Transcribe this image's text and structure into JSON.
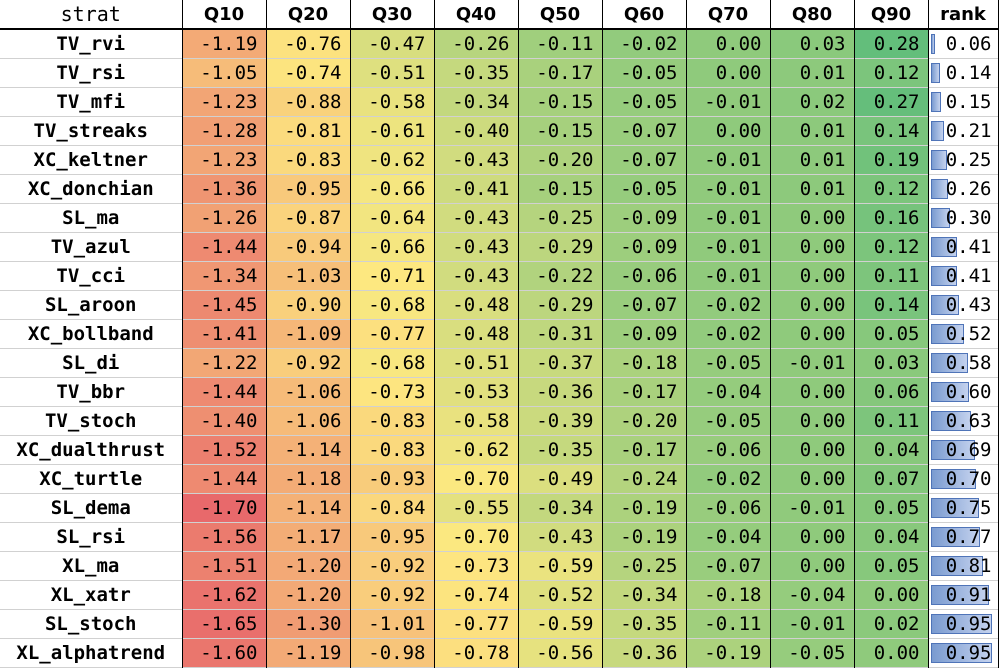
{
  "columns": [
    "strat",
    "Q10",
    "Q20",
    "Q30",
    "Q40",
    "Q50",
    "Q60",
    "Q70",
    "Q80",
    "Q90",
    "rank"
  ],
  "rows": [
    {
      "strat": "TV_rvi",
      "vals": [
        "-1.19",
        "-0.76",
        "-0.47",
        "-0.26",
        "-0.11",
        "-0.02",
        "0.00",
        "0.03",
        "0.28"
      ],
      "rank": "0.06"
    },
    {
      "strat": "TV_rsi",
      "vals": [
        "-1.05",
        "-0.74",
        "-0.51",
        "-0.35",
        "-0.17",
        "-0.05",
        "0.00",
        "0.01",
        "0.12"
      ],
      "rank": "0.14"
    },
    {
      "strat": "TV_mfi",
      "vals": [
        "-1.23",
        "-0.88",
        "-0.58",
        "-0.34",
        "-0.15",
        "-0.05",
        "-0.01",
        "0.02",
        "0.27"
      ],
      "rank": "0.15"
    },
    {
      "strat": "TV_streaks",
      "vals": [
        "-1.28",
        "-0.81",
        "-0.61",
        "-0.40",
        "-0.15",
        "-0.07",
        "0.00",
        "0.01",
        "0.14"
      ],
      "rank": "0.21"
    },
    {
      "strat": "XC_keltner",
      "vals": [
        "-1.23",
        "-0.83",
        "-0.62",
        "-0.43",
        "-0.20",
        "-0.07",
        "-0.01",
        "0.01",
        "0.19"
      ],
      "rank": "0.25"
    },
    {
      "strat": "XC_donchian",
      "vals": [
        "-1.36",
        "-0.95",
        "-0.66",
        "-0.41",
        "-0.15",
        "-0.05",
        "-0.01",
        "0.01",
        "0.12"
      ],
      "rank": "0.26"
    },
    {
      "strat": "SL_ma",
      "vals": [
        "-1.26",
        "-0.87",
        "-0.64",
        "-0.43",
        "-0.25",
        "-0.09",
        "-0.01",
        "0.00",
        "0.16"
      ],
      "rank": "0.30"
    },
    {
      "strat": "TV_azul",
      "vals": [
        "-1.44",
        "-0.94",
        "-0.66",
        "-0.43",
        "-0.29",
        "-0.09",
        "-0.01",
        "0.00",
        "0.12"
      ],
      "rank": "0.41"
    },
    {
      "strat": "TV_cci",
      "vals": [
        "-1.34",
        "-1.03",
        "-0.71",
        "-0.43",
        "-0.22",
        "-0.06",
        "-0.01",
        "0.00",
        "0.11"
      ],
      "rank": "0.41"
    },
    {
      "strat": "SL_aroon",
      "vals": [
        "-1.45",
        "-0.90",
        "-0.68",
        "-0.48",
        "-0.29",
        "-0.07",
        "-0.02",
        "0.00",
        "0.14"
      ],
      "rank": "0.43"
    },
    {
      "strat": "XC_bollband",
      "vals": [
        "-1.41",
        "-1.09",
        "-0.77",
        "-0.48",
        "-0.31",
        "-0.09",
        "-0.02",
        "0.00",
        "0.05"
      ],
      "rank": "0.52"
    },
    {
      "strat": "SL_di",
      "vals": [
        "-1.22",
        "-0.92",
        "-0.68",
        "-0.51",
        "-0.37",
        "-0.18",
        "-0.05",
        "-0.01",
        "0.03"
      ],
      "rank": "0.58"
    },
    {
      "strat": "TV_bbr",
      "vals": [
        "-1.44",
        "-1.06",
        "-0.73",
        "-0.53",
        "-0.36",
        "-0.17",
        "-0.04",
        "0.00",
        "0.06"
      ],
      "rank": "0.60"
    },
    {
      "strat": "TV_stoch",
      "vals": [
        "-1.40",
        "-1.06",
        "-0.83",
        "-0.58",
        "-0.39",
        "-0.20",
        "-0.05",
        "0.00",
        "0.11"
      ],
      "rank": "0.63"
    },
    {
      "strat": "XC_dualthrust",
      "vals": [
        "-1.52",
        "-1.14",
        "-0.83",
        "-0.62",
        "-0.35",
        "-0.17",
        "-0.06",
        "0.00",
        "0.04"
      ],
      "rank": "0.69"
    },
    {
      "strat": "XC_turtle",
      "vals": [
        "-1.44",
        "-1.18",
        "-0.93",
        "-0.70",
        "-0.49",
        "-0.24",
        "-0.02",
        "0.00",
        "0.07"
      ],
      "rank": "0.70"
    },
    {
      "strat": "SL_dema",
      "vals": [
        "-1.70",
        "-1.14",
        "-0.84",
        "-0.55",
        "-0.34",
        "-0.19",
        "-0.06",
        "-0.01",
        "0.05"
      ],
      "rank": "0.75"
    },
    {
      "strat": "SL_rsi",
      "vals": [
        "-1.56",
        "-1.17",
        "-0.95",
        "-0.70",
        "-0.43",
        "-0.19",
        "-0.04",
        "0.00",
        "0.04"
      ],
      "rank": "0.77"
    },
    {
      "strat": "XL_ma",
      "vals": [
        "-1.51",
        "-1.20",
        "-0.92",
        "-0.73",
        "-0.59",
        "-0.25",
        "-0.07",
        "0.00",
        "0.05"
      ],
      "rank": "0.81"
    },
    {
      "strat": "XL_xatr",
      "vals": [
        "-1.62",
        "-1.20",
        "-0.92",
        "-0.74",
        "-0.52",
        "-0.34",
        "-0.18",
        "-0.04",
        "0.00"
      ],
      "rank": "0.91"
    },
    {
      "strat": "SL_stoch",
      "vals": [
        "-1.65",
        "-1.30",
        "-1.01",
        "-0.77",
        "-0.59",
        "-0.35",
        "-0.11",
        "-0.01",
        "0.02"
      ],
      "rank": "0.95"
    },
    {
      "strat": "XL_alphatrend",
      "vals": [
        "-1.60",
        "-1.19",
        "-0.98",
        "-0.78",
        "-0.56",
        "-0.36",
        "-0.19",
        "-0.05",
        "0.00"
      ],
      "rank": "0.95"
    }
  ],
  "colors": {
    "scale_low": "#e8696b",
    "scale_mid": "#fde880",
    "scale_high": "#63be7b",
    "rank_bar": "#7a9bd0",
    "rank_bar_border": "#4f74b8"
  }
}
